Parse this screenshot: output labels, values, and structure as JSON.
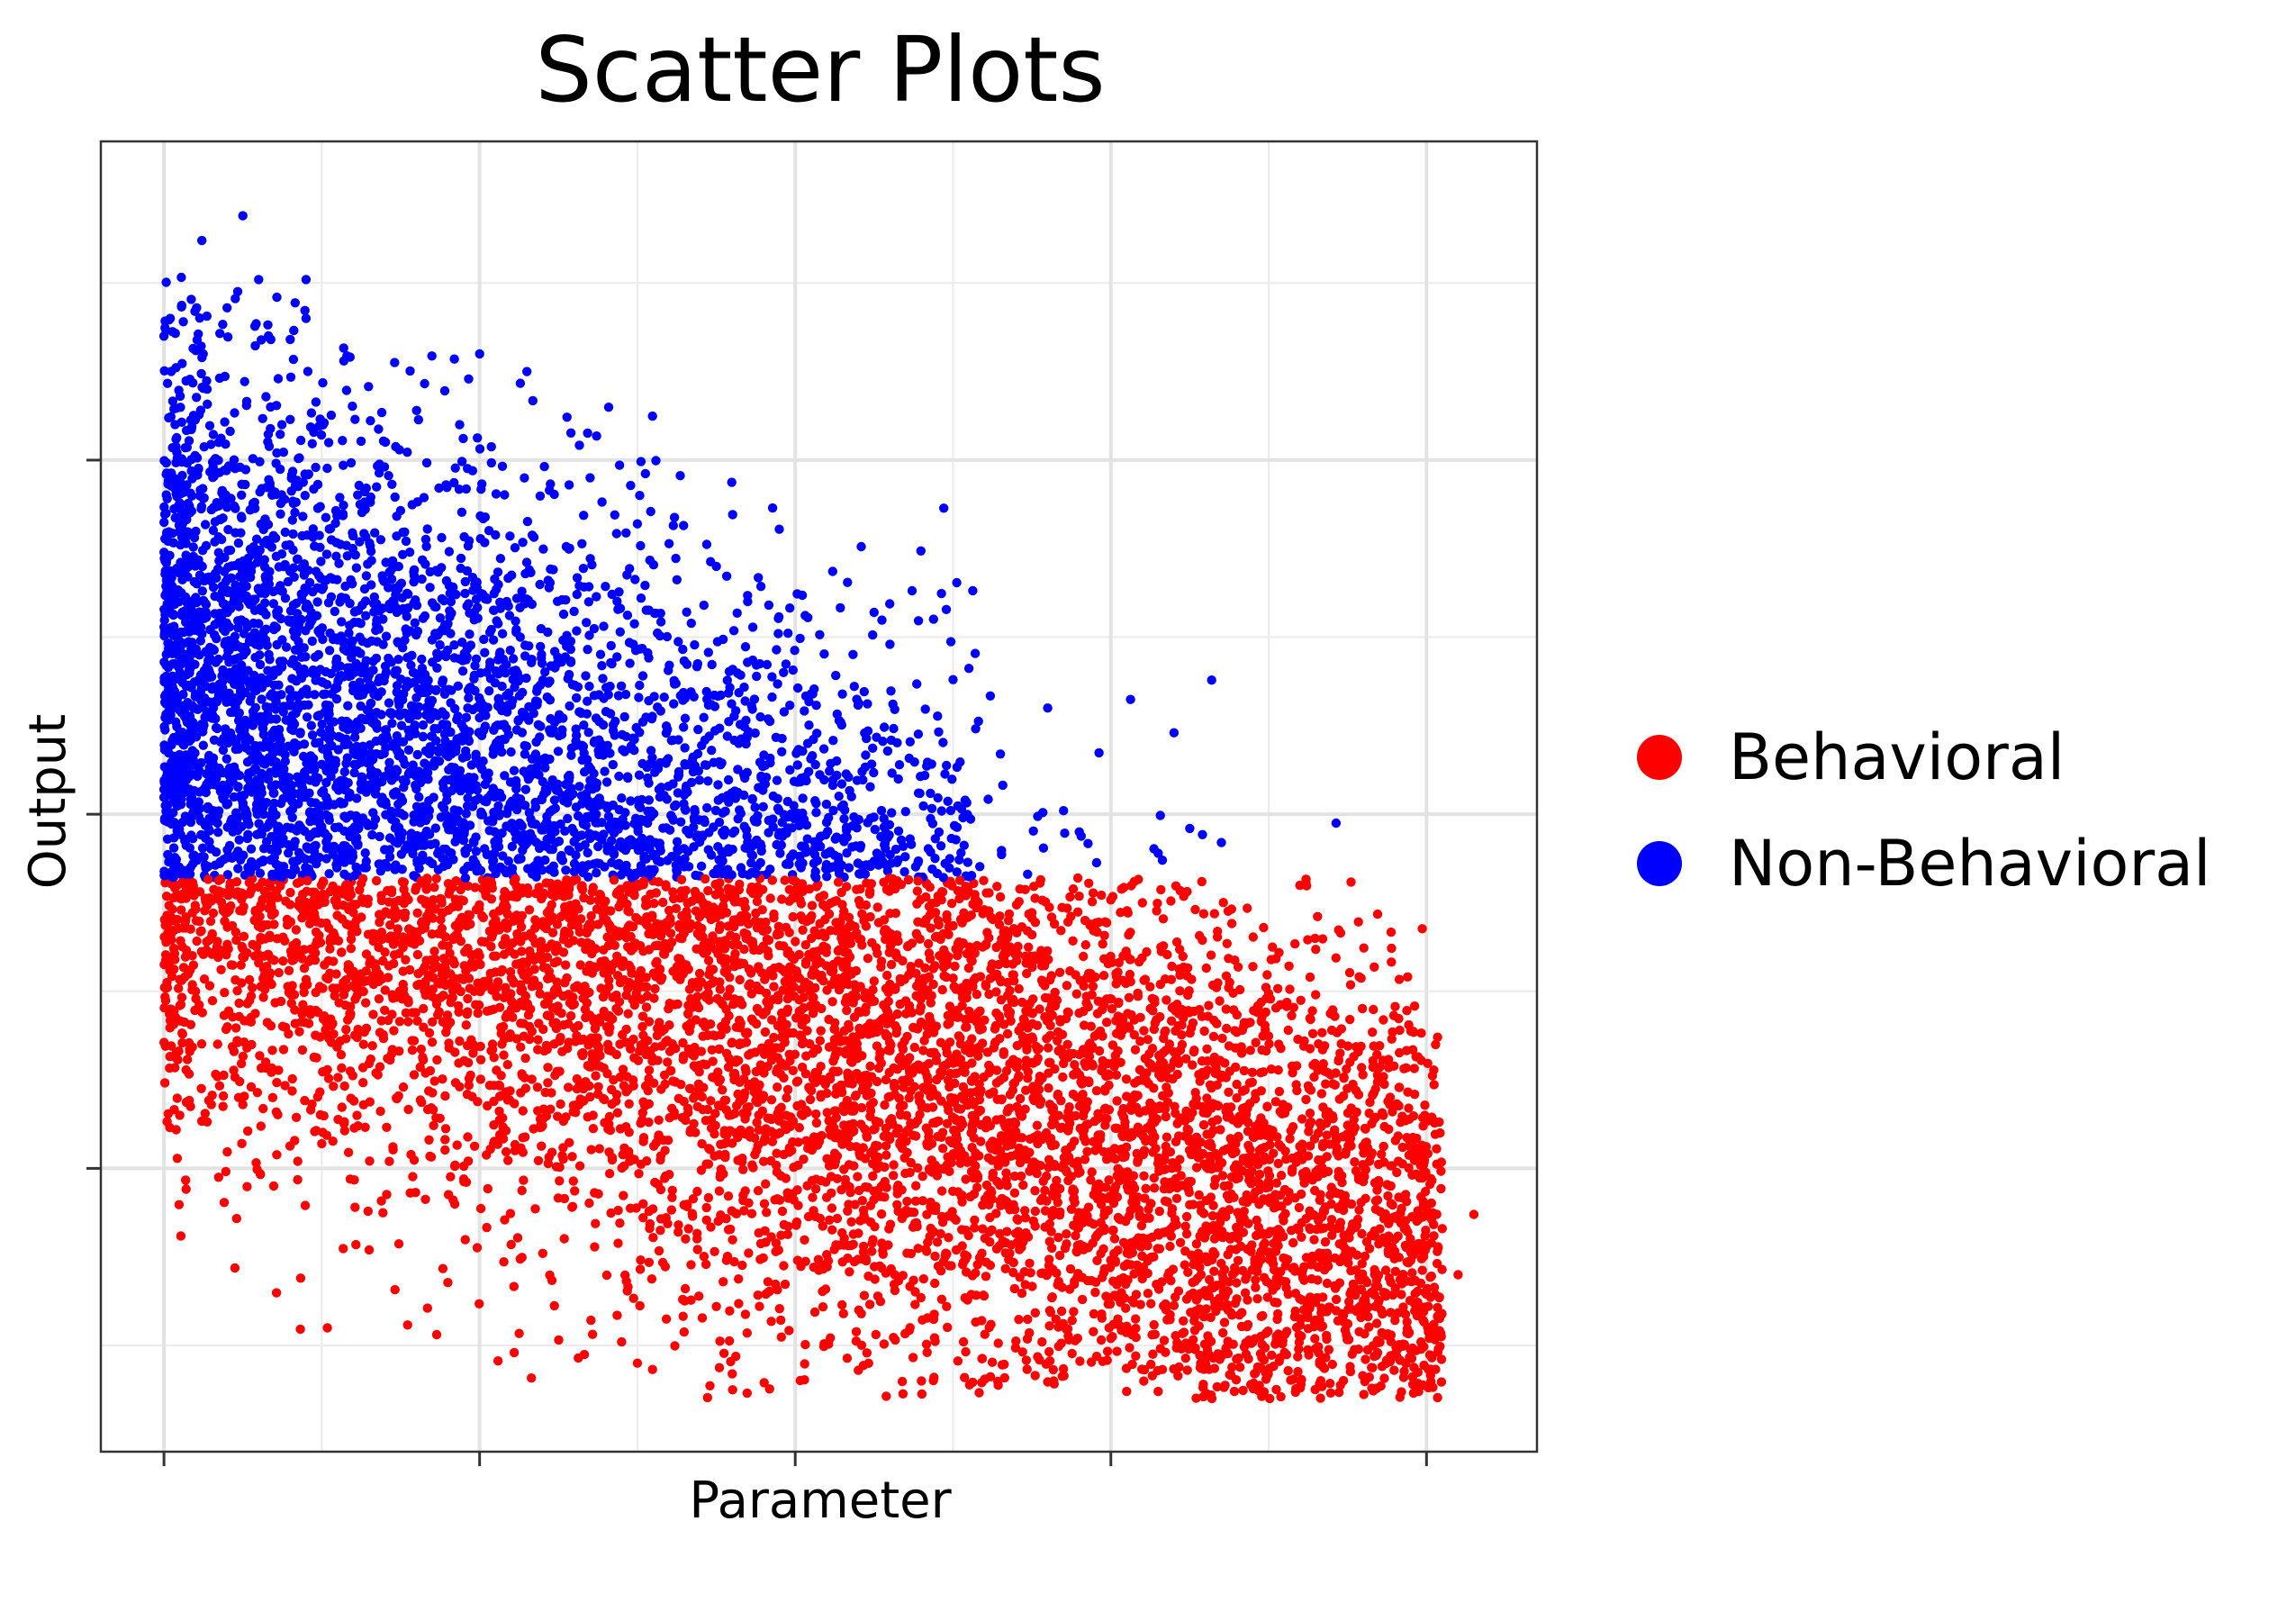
{
  "chart_data": {
    "type": "scatter",
    "title": "Scatter Plots",
    "xlabel": "Parameter",
    "ylabel": "Output",
    "x_tick_labels": [
      "",
      "",
      "",
      "",
      ""
    ],
    "y_tick_labels": [
      "",
      "",
      ""
    ],
    "xlim": [
      -0.2,
      4.35
    ],
    "ylim": [
      -1.8,
      1.9
    ],
    "grid": true,
    "legend_position": "right",
    "x_major_ticks": [
      0,
      1,
      2,
      3,
      4
    ],
    "y_major_ticks": [
      -1,
      0,
      1
    ],
    "split_threshold": -0.18,
    "colors": {
      "Behavioral": "#FF0000",
      "Non-Behavioral": "#0000FF"
    },
    "series": [
      {
        "name": "Behavioral",
        "color": "#FF0000",
        "rule": "y < -0.18",
        "points": [
          [
            0.05,
            -0.85
          ],
          [
            0.1,
            -0.5
          ],
          [
            0.15,
            -0.82
          ],
          [
            0.25,
            -0.82
          ],
          [
            0.5,
            -0.93
          ],
          [
            0.65,
            -1.23
          ],
          [
            0.95,
            -1.03
          ],
          [
            1.2,
            -1.24
          ],
          [
            1.45,
            -1.49
          ],
          [
            1.5,
            -1.55
          ],
          [
            1.75,
            -1.39
          ],
          [
            2.2,
            -1.57
          ],
          [
            2.4,
            -1.6
          ],
          [
            3.0,
            -1.48
          ],
          [
            3.05,
            -1.63
          ],
          [
            3.15,
            -1.63
          ],
          [
            3.45,
            -1.49
          ],
          [
            3.55,
            -1.52
          ],
          [
            3.6,
            -1.62
          ],
          [
            3.95,
            -1.26
          ],
          [
            3.9,
            -1.2
          ],
          [
            4.1,
            -1.3
          ],
          [
            4.05,
            -1.17
          ],
          [
            4.15,
            -1.13
          ],
          [
            3.8,
            -1.02
          ],
          [
            3.7,
            -0.61
          ],
          [
            3.45,
            -0.43
          ],
          [
            2.75,
            -0.34
          ],
          [
            2.3,
            -0.28
          ],
          [
            3.1,
            -0.25
          ],
          [
            1.0,
            -0.4
          ],
          [
            0.3,
            -0.42
          ],
          [
            0.07,
            -0.29
          ]
        ]
      },
      {
        "name": "Non-Behavioral",
        "color": "#0000FF",
        "rule": "y >= -0.18",
        "points": [
          [
            0.25,
            1.69
          ],
          [
            0.12,
            1.62
          ],
          [
            0.3,
            1.51
          ],
          [
            0.45,
            1.51
          ],
          [
            0.0,
            1.35
          ],
          [
            0.02,
            1.4
          ],
          [
            0.2,
            1.43
          ],
          [
            0.45,
            1.4
          ],
          [
            0.57,
            1.28
          ],
          [
            1.0,
            1.3
          ],
          [
            1.15,
            1.25
          ],
          [
            1.35,
            0.95
          ],
          [
            1.5,
            0.82
          ],
          [
            1.75,
            0.7
          ],
          [
            2.25,
            0.57
          ],
          [
            2.3,
            0.48
          ],
          [
            2.05,
            0.34
          ],
          [
            2.5,
            0.38
          ],
          [
            2.8,
            0.3
          ],
          [
            2.65,
            0.17
          ],
          [
            3.2,
            0.23
          ],
          [
            2.85,
            0.01
          ],
          [
            3.35,
            -0.08
          ],
          [
            3.15,
            -0.11
          ],
          [
            3.25,
            -0.04
          ],
          [
            2.9,
            -0.05
          ],
          [
            0.0,
            0.07
          ],
          [
            0.05,
            0.23
          ],
          [
            0.02,
            0.47
          ]
        ]
      }
    ]
  },
  "legend": {
    "items": [
      {
        "label": "Behavioral",
        "color": "#FF0000"
      },
      {
        "label": "Non-Behavioral",
        "color": "#0000FF"
      }
    ]
  }
}
